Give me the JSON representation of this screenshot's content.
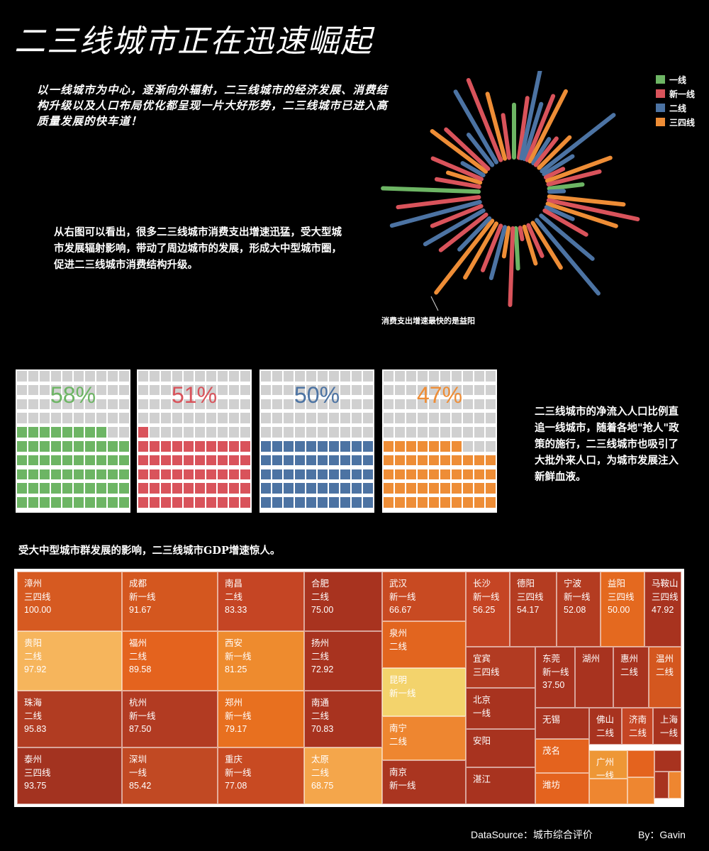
{
  "page_title": "二三线城市正在迅速崛起",
  "intro_text": "以一线城市为中心，逐渐向外辐射，二三线城市的经济发展、消费结构升级以及人口布局优化都呈现一片大好形势，二三线城市已进入高质量发展的快车道！",
  "note_consumption": "从右图可以看出，很多二三线城市消费支出增速迅猛，受大型城市发展辐射影响，带动了周边城市的发展，形成大中型城市圈，促进二三线城市消费结构升级。",
  "burst_annotation": "消费支出增速最快的是益阳",
  "note_population": "二三线城市的净流入人口比例直追一线城市，随着各地\"抢人\"政策的施行，二三线城市也吸引了大批外来人口，为城市发展注入新鲜血液。",
  "note_gdp": "受大中型城市群发展的影响，二三线城市GDP增速惊人。",
  "footer": {
    "source": "DataSource：城市综合评价",
    "author": "By：Gavin"
  },
  "colors": {
    "一线": "#6db564",
    "新一线": "#d9535b",
    "二线": "#4c73a3",
    "三四线": "#ee8d36"
  },
  "chart_data": [
    {
      "type": "radial-bar",
      "legend": [
        "一线",
        "新一线",
        "二线",
        "三四线"
      ],
      "legend_position": "top-right",
      "annotation": "消费支出增速最快的是益阳",
      "bars": [
        {
          "angle": 0,
          "value": 0.55,
          "tier": "一线"
        },
        {
          "angle": 8,
          "value": 0.63,
          "tier": "新一线"
        },
        {
          "angle": 12,
          "value": 0.95,
          "tier": "二线"
        },
        {
          "angle": 17,
          "value": 0.6,
          "tier": "二线"
        },
        {
          "angle": 22,
          "value": 0.72,
          "tier": "新一线"
        },
        {
          "angle": 27,
          "value": 0.82,
          "tier": "三四线"
        },
        {
          "angle": 33,
          "value": 0.3,
          "tier": "二线"
        },
        {
          "angle": 38,
          "value": 0.35,
          "tier": "新一线"
        },
        {
          "angle": 45,
          "value": 0.45,
          "tier": "三四线"
        },
        {
          "angle": 52,
          "value": 0.95,
          "tier": "二线"
        },
        {
          "angle": 58,
          "value": 0.35,
          "tier": "二线"
        },
        {
          "angle": 64,
          "value": 0.2,
          "tier": "新一线"
        },
        {
          "angle": 70,
          "value": 0.7,
          "tier": "三四线"
        },
        {
          "angle": 76,
          "value": 0.55,
          "tier": "新一线"
        },
        {
          "angle": 83,
          "value": 0.35,
          "tier": "一线"
        },
        {
          "angle": 88,
          "value": 0.15,
          "tier": "二线"
        },
        {
          "angle": 96,
          "value": 0.78,
          "tier": "三四线"
        },
        {
          "angle": 102,
          "value": 0.95,
          "tier": "新一线"
        },
        {
          "angle": 108,
          "value": 0.75,
          "tier": "三四线"
        },
        {
          "angle": 114,
          "value": 0.3,
          "tier": "二线"
        },
        {
          "angle": 120,
          "value": 0.5,
          "tier": "新一线"
        },
        {
          "angle": 130,
          "value": 0.7,
          "tier": "二线"
        },
        {
          "angle": 140,
          "value": 1.0,
          "tier": "二线"
        },
        {
          "angle": 148,
          "value": 0.55,
          "tier": "三四线"
        },
        {
          "angle": 156,
          "value": 0.35,
          "tier": "新一线"
        },
        {
          "angle": 163,
          "value": 0.4,
          "tier": "三四线"
        },
        {
          "angle": 170,
          "value": 0.12,
          "tier": "新一线"
        },
        {
          "angle": 177,
          "value": 0.42,
          "tier": "一线"
        },
        {
          "angle": 182,
          "value": 0.8,
          "tier": "新一线"
        },
        {
          "angle": 189,
          "value": 0.3,
          "tier": "三四线"
        },
        {
          "angle": 195,
          "value": 0.55,
          "tier": "二线"
        },
        {
          "angle": 202,
          "value": 0.5,
          "tier": "新一线"
        },
        {
          "angle": 210,
          "value": 0.65,
          "tier": "三四线"
        },
        {
          "angle": 218,
          "value": 0.95,
          "tier": "三四线"
        },
        {
          "angle": 224,
          "value": 0.45,
          "tier": "二线"
        },
        {
          "angle": 232,
          "value": 0.6,
          "tier": "新一线"
        },
        {
          "angle": 240,
          "value": 0.7,
          "tier": "二线"
        },
        {
          "angle": 248,
          "value": 0.55,
          "tier": "新一线"
        },
        {
          "angle": 255,
          "value": 0.95,
          "tier": "二线"
        },
        {
          "angle": 263,
          "value": 0.85,
          "tier": "新一线"
        },
        {
          "angle": 272,
          "value": 1.0,
          "tier": "一线"
        },
        {
          "angle": 280,
          "value": 0.45,
          "tier": "新一线"
        },
        {
          "angle": 287,
          "value": 0.35,
          "tier": "三四线"
        },
        {
          "angle": 293,
          "value": 0.55,
          "tier": "新一线"
        },
        {
          "angle": 300,
          "value": 0.25,
          "tier": "二线"
        },
        {
          "angle": 307,
          "value": 0.7,
          "tier": "三四线"
        },
        {
          "angle": 313,
          "value": 0.6,
          "tier": "新一线"
        },
        {
          "angle": 322,
          "value": 0.4,
          "tier": "二线"
        },
        {
          "angle": 330,
          "value": 0.85,
          "tier": "二线"
        },
        {
          "angle": 338,
          "value": 0.9,
          "tier": "新一线"
        },
        {
          "angle": 345,
          "value": 0.7,
          "tier": "三四线"
        },
        {
          "angle": 352,
          "value": 0.45,
          "tier": "新一线"
        }
      ]
    },
    {
      "type": "waffle",
      "items": [
        {
          "tier": "一线",
          "label": "58%",
          "value": 58
        },
        {
          "tier": "新一线",
          "label": "51%",
          "value": 51
        },
        {
          "tier": "二线",
          "label": "50%",
          "value": 50
        },
        {
          "tier": "三四线",
          "label": "47%",
          "value": 47
        }
      ]
    },
    {
      "type": "treemap",
      "cells": [
        {
          "city": "漳州",
          "tier": "三四线",
          "value": "100.00"
        },
        {
          "city": "贵阳",
          "tier": "二线",
          "value": "97.92"
        },
        {
          "city": "珠海",
          "tier": "二线",
          "value": "95.83"
        },
        {
          "city": "泰州",
          "tier": "三四线",
          "value": "93.75"
        },
        {
          "city": "成都",
          "tier": "新一线",
          "value": "91.67"
        },
        {
          "city": "福州",
          "tier": "二线",
          "value": "89.58"
        },
        {
          "city": "杭州",
          "tier": "新一线",
          "value": "87.50"
        },
        {
          "city": "深圳",
          "tier": "一线",
          "value": "85.42"
        },
        {
          "city": "南昌",
          "tier": "二线",
          "value": "83.33"
        },
        {
          "city": "西安",
          "tier": "新一线",
          "value": "81.25"
        },
        {
          "city": "郑州",
          "tier": "新一线",
          "value": "79.17"
        },
        {
          "city": "重庆",
          "tier": "新一线",
          "value": "77.08"
        },
        {
          "city": "合肥",
          "tier": "二线",
          "value": "75.00"
        },
        {
          "city": "扬州",
          "tier": "二线",
          "value": "72.92"
        },
        {
          "city": "南通",
          "tier": "二线",
          "value": "70.83"
        },
        {
          "city": "太原",
          "tier": "二线",
          "value": "68.75"
        },
        {
          "city": "武汉",
          "tier": "新一线",
          "value": "66.67"
        },
        {
          "city": "泉州",
          "tier": "二线",
          "value": ""
        },
        {
          "city": "昆明",
          "tier": "新一线",
          "value": ""
        },
        {
          "city": "南宁",
          "tier": "二线",
          "value": ""
        },
        {
          "city": "南京",
          "tier": "新一线",
          "value": ""
        },
        {
          "city": "长沙",
          "tier": "新一线",
          "value": "56.25"
        },
        {
          "city": "德阳",
          "tier": "三四线",
          "value": "54.17"
        },
        {
          "city": "宁波",
          "tier": "新一线",
          "value": "52.08"
        },
        {
          "city": "益阳",
          "tier": "三四线",
          "value": "50.00"
        },
        {
          "city": "马鞍山",
          "tier": "三四线",
          "value": "47.92"
        },
        {
          "city": "宜宾",
          "tier": "三四线",
          "value": ""
        },
        {
          "city": "东莞",
          "tier": "新一线",
          "value": "37.50"
        },
        {
          "city": "湖州",
          "tier": "",
          "value": ""
        },
        {
          "city": "惠州",
          "tier": "二线",
          "value": ""
        },
        {
          "city": "温州",
          "tier": "二线",
          "value": ""
        },
        {
          "city": "北京",
          "tier": "一线",
          "value": ""
        },
        {
          "city": "无锡",
          "tier": "",
          "value": ""
        },
        {
          "city": "佛山",
          "tier": "二线",
          "value": ""
        },
        {
          "city": "济南",
          "tier": "二线",
          "value": ""
        },
        {
          "city": "上海",
          "tier": "一线",
          "value": ""
        },
        {
          "city": "安阳",
          "tier": "",
          "value": ""
        },
        {
          "city": "茂名",
          "tier": "",
          "value": ""
        },
        {
          "city": "广州",
          "tier": "一线",
          "value": ""
        },
        {
          "city": "湛江",
          "tier": "",
          "value": ""
        },
        {
          "city": "潍坊",
          "tier": "",
          "value": ""
        },
        {
          "city": "",
          "tier": "",
          "value": ""
        },
        {
          "city": "",
          "tier": "",
          "value": ""
        },
        {
          "city": "",
          "tier": "",
          "value": ""
        },
        {
          "city": "",
          "tier": "",
          "value": ""
        },
        {
          "city": "",
          "tier": "",
          "value": ""
        },
        {
          "city": "",
          "tier": "",
          "value": ""
        }
      ]
    }
  ]
}
